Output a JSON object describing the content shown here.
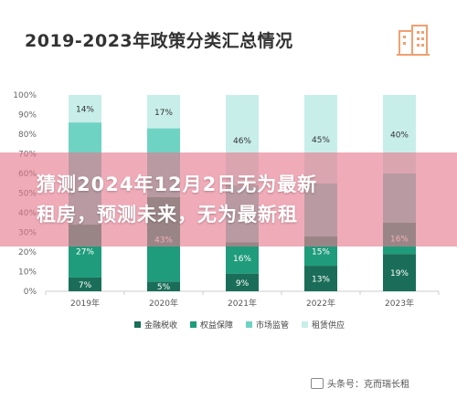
{
  "header": {
    "title": "2019-2023年政策分类汇总情况"
  },
  "banner": {
    "line1": "猜测2024年12月2日无为最新",
    "line2": "租房，预测未来，无为最新租"
  },
  "watermark": {
    "text": "头条号：克而瑞长租"
  },
  "colors": {
    "jinrong": "#1a6e59",
    "quanyi": "#1f9c7c",
    "shichang": "#6fd3c4",
    "zulin": "#c8eeea",
    "banner": "#e6788c"
  },
  "chart_data": {
    "type": "bar",
    "stacked": true,
    "percent": true,
    "categories": [
      "2019年",
      "2020年",
      "2021年",
      "2022年",
      "2023年"
    ],
    "yticks": [
      "0%",
      "10%",
      "20%",
      "30%",
      "40%",
      "50%",
      "60%",
      "70%",
      "80%",
      "90%",
      "100%"
    ],
    "ylim": [
      0,
      100
    ],
    "series": [
      {
        "name": "金融税收",
        "values": [
          7,
          5,
          9,
          13,
          19
        ],
        "labels": [
          "7%",
          "5%",
          "9%",
          "13%",
          "19%"
        ]
      },
      {
        "name": "权益保障",
        "values": [
          27,
          43,
          16,
          15,
          16
        ],
        "labels": [
          "27%",
          "43%",
          "16%",
          "15%",
          "16%"
        ]
      },
      {
        "name": "市场监管",
        "values": [
          52,
          35,
          29,
          27,
          25
        ],
        "labels": [
          "",
          "",
          "",
          "",
          ""
        ]
      },
      {
        "name": "租赁供应",
        "values": [
          14,
          17,
          46,
          45,
          40
        ],
        "labels": [
          "14%",
          "17%",
          "46%",
          "45%",
          "40%"
        ]
      }
    ],
    "legend_position": "bottom",
    "grid": false
  }
}
